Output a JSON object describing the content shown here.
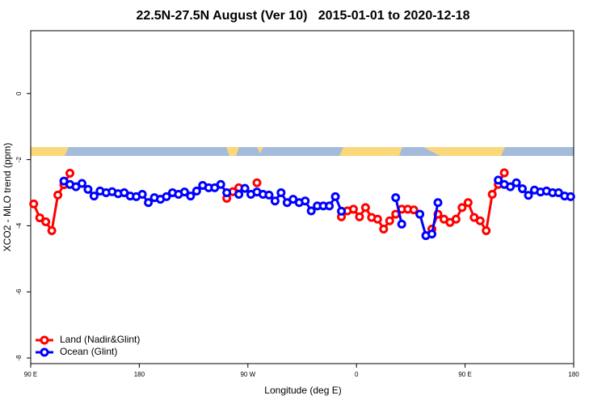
{
  "chart_data": {
    "type": "line",
    "title": "22.5N-27.5N August (Ver 10)   2015-01-01 to 2020-12-18",
    "x_label": "Longitude (deg E)",
    "y_label": "XCO2 - MLO trend (ppm)",
    "x": [
      92.5,
      97.5,
      102.5,
      107.5,
      112.5,
      117.5,
      122.5,
      127.5,
      132.5,
      137.5,
      142.5,
      147.5,
      152.5,
      157.5,
      162.5,
      167.5,
      172.5,
      177.5,
      182.5,
      187.5,
      192.5,
      197.5,
      202.5,
      207.5,
      212.5,
      217.5,
      222.5,
      227.5,
      232.5,
      237.5,
      242.5,
      247.5,
      252.5,
      257.5,
      262.5,
      267.5,
      272.5,
      277.5,
      282.5,
      287.5,
      292.5,
      297.5,
      302.5,
      307.5,
      312.5,
      317.5,
      322.5,
      327.5,
      332.5,
      337.5,
      342.5,
      347.5,
      352.5,
      357.5,
      362.5,
      367.5,
      372.5,
      377.5,
      382.5,
      387.5,
      392.5,
      397.5,
      402.5,
      407.5,
      412.5,
      417.5,
      422.5,
      427.5,
      432.5,
      437.5,
      442.5,
      447.5,
      452.5,
      457.5,
      462.5,
      467.5,
      472.5,
      477.5,
      482.5,
      487.5,
      492.5,
      497.5,
      502.5,
      507.5,
      512.5,
      517.5,
      522.5,
      527.5,
      532.5,
      537.5
    ],
    "series": [
      {
        "name": "Land (Nadir&Glint)",
        "color": "#ff0000",
        "values": [
          -3.34,
          -3.76,
          -3.88,
          -4.15,
          -3.07,
          -2.76,
          -2.41,
          null,
          null,
          null,
          null,
          null,
          null,
          null,
          null,
          null,
          null,
          null,
          null,
          null,
          null,
          null,
          null,
          null,
          null,
          null,
          null,
          null,
          null,
          null,
          null,
          null,
          -3.17,
          -2.97,
          -2.85,
          null,
          null,
          -2.7,
          null,
          null,
          null,
          null,
          null,
          null,
          null,
          null,
          null,
          null,
          null,
          null,
          null,
          -3.73,
          -3.55,
          -3.5,
          -3.73,
          -3.45,
          -3.75,
          -3.8,
          -4.1,
          -3.85,
          -3.65,
          -3.5,
          -3.5,
          -3.52,
          null,
          -4.3,
          -4.1,
          -3.65,
          -3.8,
          -3.9,
          -3.8,
          -3.45,
          -3.3,
          -3.75,
          -3.85,
          -4.15,
          -3.05,
          -2.75,
          -2.4,
          null,
          null,
          null,
          null,
          null,
          null,
          null,
          null,
          null,
          null,
          null
        ]
      },
      {
        "name": "Ocean (Glint)",
        "color": "#0000ff",
        "values": [
          null,
          null,
          null,
          null,
          null,
          -2.65,
          -2.75,
          -2.82,
          -2.72,
          -2.9,
          -3.1,
          -2.95,
          -3.0,
          -2.97,
          -3.03,
          -3.0,
          -3.1,
          -3.12,
          -3.05,
          -3.3,
          -3.15,
          -3.2,
          -3.12,
          -3.0,
          -3.05,
          -2.98,
          -3.1,
          -2.95,
          -2.78,
          -2.85,
          -2.85,
          -2.75,
          -3.0,
          null,
          -3.05,
          -2.87,
          -3.05,
          -2.98,
          -3.05,
          -3.07,
          -3.25,
          -3.0,
          -3.3,
          -3.2,
          -3.3,
          -3.25,
          -3.55,
          -3.4,
          -3.4,
          -3.4,
          -3.12,
          -3.56,
          null,
          null,
          null,
          null,
          null,
          null,
          null,
          null,
          -3.15,
          -3.95,
          null,
          null,
          -3.65,
          -4.3,
          -4.25,
          -3.3,
          null,
          null,
          null,
          null,
          null,
          null,
          null,
          null,
          null,
          -2.62,
          -2.75,
          -2.82,
          -2.7,
          -2.88,
          -3.08,
          -2.92,
          -2.98,
          -2.95,
          -3.0,
          -3.0,
          -3.1,
          -3.12
        ]
      }
    ],
    "xlim": [
      90,
      540
    ],
    "xticks": [
      {
        "value": 90,
        "label": "90 E"
      },
      180,
      {
        "value": 270,
        "label": "90 W"
      },
      {
        "value": 360,
        "label": "0"
      },
      {
        "value": 450,
        "label": "90 E"
      },
      {
        "value": 540,
        "label": "180"
      }
    ],
    "ylim": [
      -8.17,
      1.9
    ],
    "yticks": [
      -8,
      -6,
      -4,
      -2,
      0
    ],
    "legend": "bottomleft"
  }
}
